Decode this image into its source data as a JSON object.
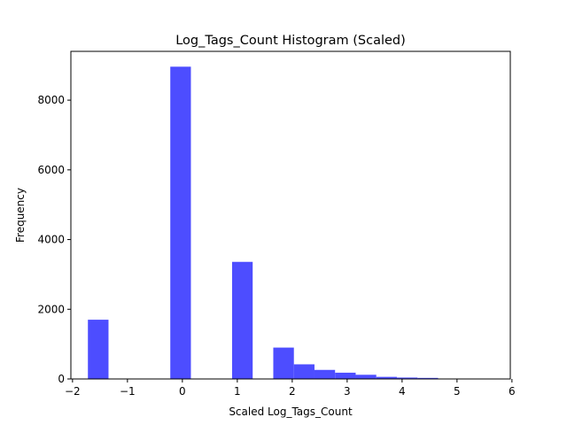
{
  "chart_data": {
    "type": "bar",
    "title": "Log_Tags_Count Histogram (Scaled)",
    "xlabel": "Scaled Log_Tags_Count",
    "ylabel": "Frequency",
    "xlim": [
      -2.03,
      5.97
    ],
    "ylim": [
      0,
      9400
    ],
    "xticks": [
      -2,
      -1,
      0,
      1,
      2,
      3,
      4,
      5,
      6
    ],
    "yticks": [
      0,
      2000,
      4000,
      6000,
      8000
    ],
    "bar_color": "#4d4dff",
    "bin_edges": [
      -1.72,
      -1.345,
      -0.97,
      -0.595,
      -0.22,
      0.155,
      0.53,
      0.905,
      1.28,
      1.655,
      2.03,
      2.405,
      2.78,
      3.155,
      3.53,
      3.905,
      4.28,
      4.655,
      5.03,
      5.405,
      5.78
    ],
    "values": [
      1700,
      0,
      0,
      0,
      8960,
      0,
      0,
      3360,
      0,
      900,
      420,
      260,
      180,
      120,
      60,
      40,
      30,
      10,
      10,
      10
    ],
    "grid": false,
    "legend": "none"
  }
}
